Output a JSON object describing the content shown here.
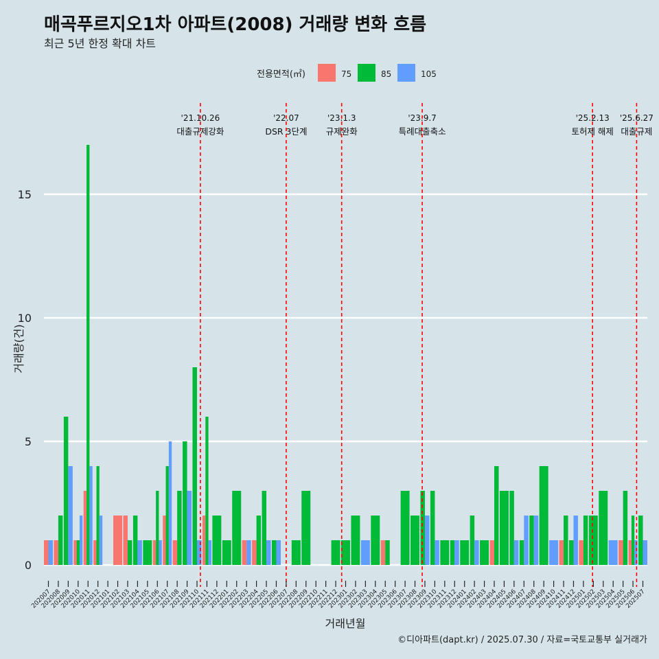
{
  "chart_data": {
    "type": "bar",
    "title": "매곡푸르지오1차 아파트(2008) 거래량 변화 흐름",
    "subtitle": "최근 5년 한정 확대 차트",
    "xlabel": "거래년월",
    "ylabel": "거래량(건)",
    "caption": "©디아파트(dapt.kr) / 2025.07.30 / 자료=국토교통부 실거래가",
    "legend": {
      "title": "전용면적(㎡)",
      "position": "top"
    },
    "ylim": [
      0,
      17
    ],
    "yticks": [
      0,
      5,
      10,
      15
    ],
    "grid": true,
    "categories": [
      "202007",
      "202008",
      "202009",
      "202010",
      "202011",
      "202012",
      "202101",
      "202102",
      "202103",
      "202104",
      "202105",
      "202106",
      "202107",
      "202108",
      "202109",
      "202110",
      "202111",
      "202112",
      "202201",
      "202202",
      "202203",
      "202204",
      "202205",
      "202206",
      "202207",
      "202208",
      "202209",
      "202210",
      "202211",
      "202212",
      "202301",
      "202302",
      "202303",
      "202304",
      "202305",
      "202306",
      "202307",
      "202308",
      "202309",
      "202310",
      "202311",
      "202312",
      "202401",
      "202402",
      "202403",
      "202404",
      "202405",
      "202406",
      "202407",
      "202408",
      "202409",
      "202410",
      "202411",
      "202412",
      "202501",
      "202502",
      "202503",
      "202504",
      "202505",
      "202506",
      "202507"
    ],
    "series": [
      {
        "name": "75",
        "color": "#f8766d",
        "values": [
          1,
          1,
          0,
          1,
          3,
          1,
          0,
          2,
          2,
          0,
          0,
          1,
          2,
          1,
          0,
          0,
          2,
          0,
          0,
          0,
          1,
          1,
          0,
          0,
          0,
          0,
          0,
          0,
          0,
          0,
          0,
          0,
          0,
          0,
          1,
          0,
          0,
          0,
          0,
          0,
          0,
          0,
          0,
          0,
          0,
          1,
          0,
          0,
          0,
          0,
          0,
          0,
          1,
          0,
          1,
          0,
          0,
          0,
          1,
          1,
          0
        ]
      },
      {
        "name": "85",
        "color": "#00ba38",
        "values": [
          0,
          2,
          6,
          1,
          17,
          4,
          0,
          0,
          1,
          2,
          1,
          3,
          4,
          3,
          5,
          8,
          6,
          2,
          1,
          3,
          0,
          2,
          3,
          1,
          0,
          1,
          3,
          0,
          0,
          1,
          1,
          2,
          0,
          2,
          1,
          0,
          3,
          2,
          3,
          3,
          1,
          1,
          1,
          2,
          1,
          4,
          3,
          3,
          1,
          2,
          4,
          0,
          2,
          1,
          2,
          2,
          3,
          0,
          3,
          2,
          2
        ]
      },
      {
        "name": "105",
        "color": "#619cff",
        "values": [
          1,
          0,
          4,
          2,
          4,
          2,
          0,
          0,
          0,
          1,
          0,
          1,
          5,
          0,
          3,
          1,
          1,
          0,
          0,
          0,
          1,
          0,
          1,
          1,
          0,
          0,
          0,
          0,
          0,
          0,
          0,
          0,
          1,
          0,
          0,
          0,
          0,
          0,
          2,
          1,
          0,
          1,
          0,
          1,
          0,
          0,
          0,
          1,
          2,
          2,
          0,
          1,
          0,
          2,
          0,
          0,
          0,
          1,
          0,
          1,
          1
        ]
      }
    ],
    "events": [
      {
        "date": "'21.10.26",
        "label": "대출규제강화",
        "month": "202110",
        "offset": 0.84
      },
      {
        "date": "'22.07",
        "label": "DSR 3단계",
        "month": "202207",
        "offset": 0.5
      },
      {
        "date": "'23.1.3",
        "label": "규제완화",
        "month": "202301",
        "offset": 0.1
      },
      {
        "date": "'23.9.7",
        "label": "특례대출축소",
        "month": "202309",
        "offset": 0.23
      },
      {
        "date": "'25.2.13",
        "label": "토허제 해제",
        "month": "202502",
        "offset": 0.42
      },
      {
        "date": "'25.6.27",
        "label": "대출규제",
        "month": "202506",
        "offset": 0.87
      }
    ]
  }
}
